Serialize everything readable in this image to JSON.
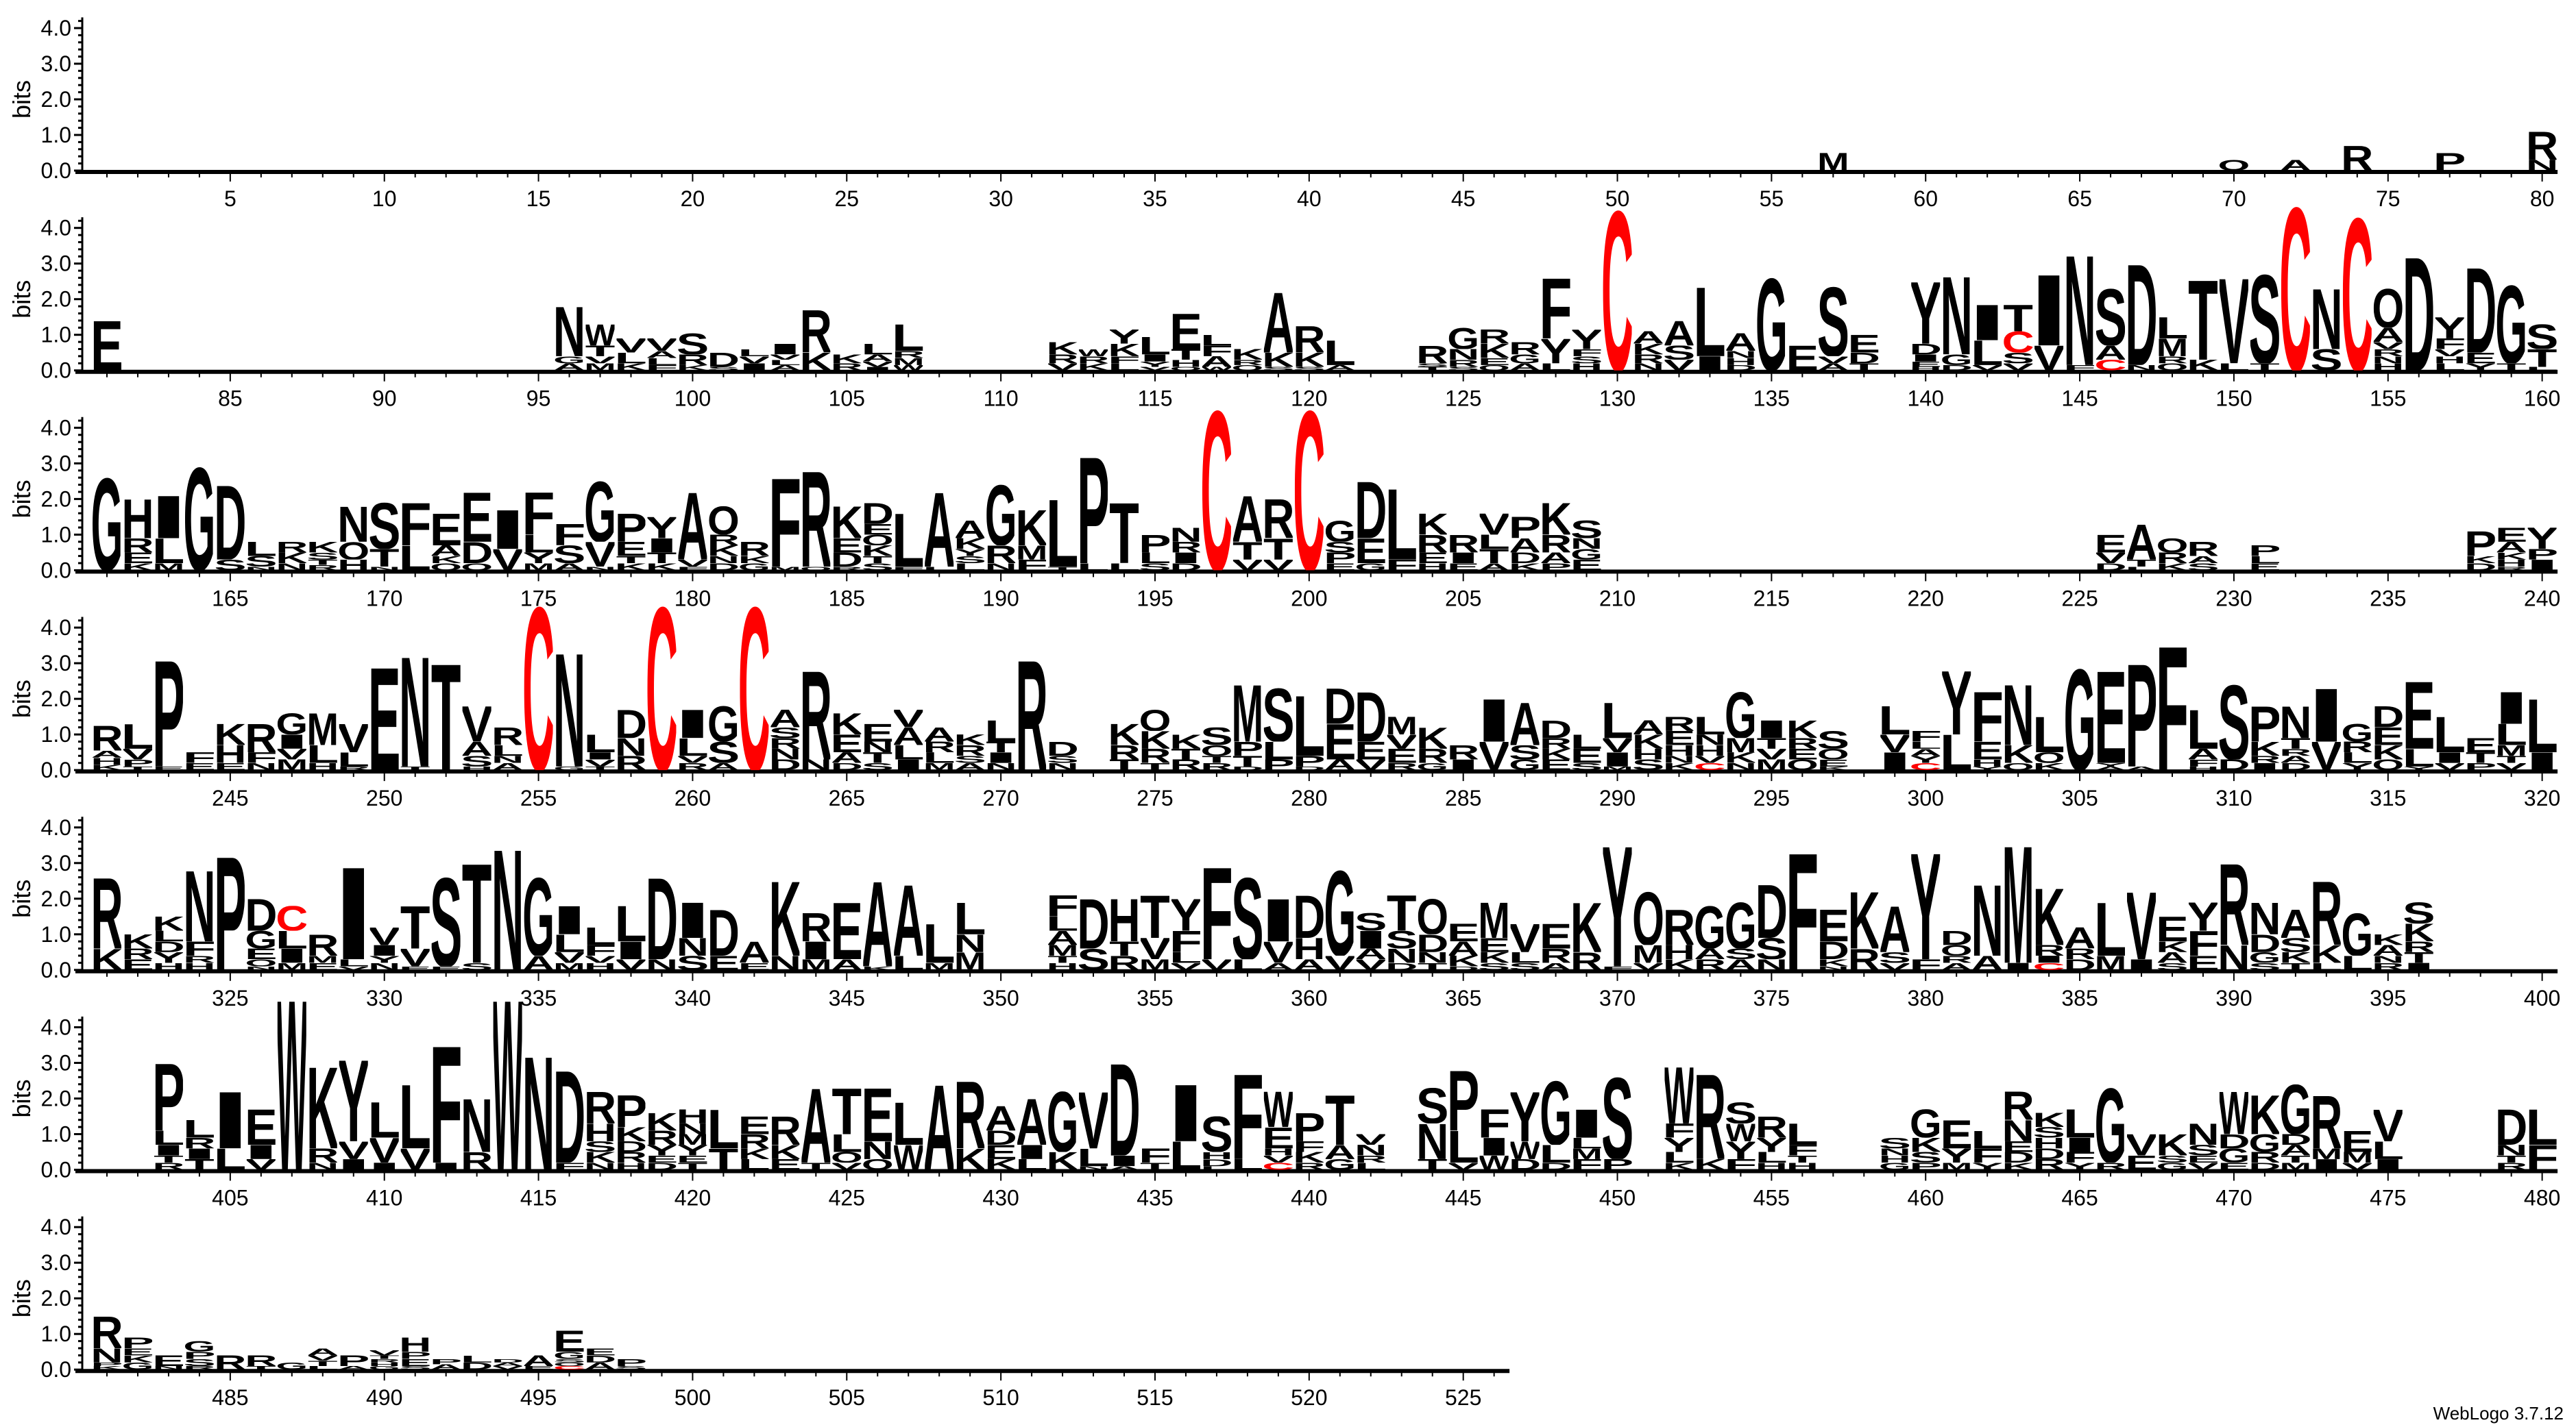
{
  "footer": "WebLogo 3.7.12",
  "chart_data": {
    "type": "sequence-logo",
    "ylabel": "bits",
    "ylim": [
      0,
      4.3
    ],
    "y_tick_labels": [
      "0.0",
      "1.0",
      "2.0",
      "3.0",
      "4.0"
    ],
    "x_tick_step": 5,
    "colors": {
      "default": "#000000",
      "C": "#ff0000",
      "errorbar": "#c0c0c0"
    },
    "rows": [
      {
        "start": 1,
        "end": 80
      },
      {
        "start": 81,
        "end": 160
      },
      {
        "start": 161,
        "end": 240
      },
      {
        "start": 241,
        "end": 320
      },
      {
        "start": 321,
        "end": 400
      },
      {
        "start": 401,
        "end": 480
      },
      {
        "start": 481,
        "end": 526
      }
    ],
    "stacks": {
      "57": "M0.5",
      "70": "Q0.3",
      "72": "A0.3",
      "74": "R0.7",
      "77": "P0.5",
      "80": "R0.8 N0.3",
      "81": "E1.4",
      "96": "N1.4 A0.2 G0.2",
      "97": "W0.6 T0.3 M0.2 V0.2",
      "98": "V0.4 L0.3 K0.2",
      "99": "V0.35 L0.2 A0.2 F0.15",
      "100": "S0.6 R0.3 K0.15",
      "101": "D0.4 S0.1",
      "102": "I0.2 V0.2 L0.2",
      "103": "I0.3 A0.15 L0.15 V0.15",
      "104": "R1.2 K0.5",
      "105": "K0.25 R0.2",
      "106": "L0.3 A0.2 V0.15 I0.1",
      "107": "L0.75 M0.2 R0.2 W0.15",
      "112": "K0.35 R0.25 V0.2",
      "113": "K0.2 R0.2 W0.2",
      "114": "Y0.4 K0.35 L0.2 F0.2",
      "115": "L0.5 I0.2 Y0.15 V0.1",
      "116": "E1.0 T0.3 H0.2 Q0.1",
      "117": "A0.3 F0.3 L0.3 W0.1",
      "118": "K0.3 Q0.15 R0.15",
      "119": "A1.7 K0.4 S0.1",
      "120": "R0.75 K0.4 S0.1",
      "121": "L0.7 A0.15",
      "124": "R0.5 T0.1 S0.1",
      "125": "G0.6 N0.3 R0.2 S0.1",
      "126": "K0.4 R0.4 E0.2 Q0.15",
      "127": "R0.35 G0.25 A0.2",
      "128": "F1.7 Y0.7 L0.2",
      "129": "Y0.55 H0.2 S0.2 F0.2",
      "130": "C4.5",
      "131": "A0.35 K0.3 R0.25 N0.2",
      "132": "A0.7 S0.4 V0.3",
      "133": "L1.95 I0.4",
      "134": "A0.5 H0.2 N0.2 D0.15",
      "135": "G2.6",
      "136": "E0.7",
      "137": "S1.95 A0.2 V0.2",
      "138": "E0.5 D0.3 T0.2",
      "140": "Y1.75 D0.3 I0.2 E0.15 H0.1",
      "141": "N2.2 G0.3 D0.15",
      "142": "I1.0 L0.7 V0.15",
      "143": "T0.75 C0.6 S0.3 V0.2",
      "144": "I2.0 V0.7",
      "145": "N3.1 F0.15",
      "146": "S1.6 A0.4 C0.3",
      "147": "D2.85 N0.15",
      "148": "L0.6 M0.5 Q0.2 R0.2",
      "149": "T2.25 K0.3",
      "150": "V2.4 L0.2",
      "151": "S2.5 T0.2",
      "152": "C4.6",
      "153": "N1.7 S0.6",
      "154": "C4.3",
      "155": "Q1.1 A0.4 H0.2 N0.2 R0.2 V0.2",
      "156": "D3.2",
      "157": "Y0.6 F0.3 L0.2 H0.2 V0.2",
      "158": "D2.4 E0.3 Y0.2",
      "159": "G2.2 T0.2",
      "160": "S0.7 T0.5 L0.1",
      "161": "G2.6",
      "162": "H1.1 R0.4 E0.3 K0.2",
      "163": "I1.2 L0.7 M0.2",
      "164": "G2.9",
      "165": "D2.1 S0.3",
      "166": "L0.4 S0.3 N0.1",
      "167": "K0.3 R0.3 N0.2",
      "168": "K0.3 S0.2 R0.15 T0.15",
      "169": "N1.0 Q0.5 H0.3",
      "170": "S1.3 T0.5 N0.1",
      "171": "F1.2 L0.7",
      "172": "E0.9 A0.3 Q0.2 K0.2",
      "173": "E1.4 D0.6 Q0.2",
      "174": "I1.1 V0.6",
      "175": "F1.2 L0.5 Y0.3 M0.2",
      "176": "F0.6 S0.5 A0.2",
      "177": "G1.7 V0.7 N0.1",
      "178": "P0.8 E0.4 K0.2 T0.2",
      "179": "Y0.6 I0.4 T0.3 K0.2",
      "180": "A1.9 V0.2 F0.1",
      "181": "Q0.8 K0.3 R0.3 D0.2 N0.2",
      "182": "R0.4 G0.2 K0.2",
      "183": "F2.5 M0.1",
      "184": "R2.7 Q0.1",
      "185": "K0.9 D0.4 E0.4 R0.1",
      "186": "D0.6 K0.3 Q0.3 E0.3 S0.2 T0.2",
      "187": "L1.5 F0.1",
      "188": "A2.1 L0.1",
      "189": "A0.5 K0.3 L0.2 S0.2 Y0.2",
      "190": "G1.7 R0.5 N0.2",
      "191": "K1.0 M0.4 F0.3",
      "192": "L1.9 T0.1",
      "193": "P3.0 L0.2",
      "194": "T1.7 L0.2",
      "195": "P0.5 L0.3 S0.2",
      "196": "N0.4 I0.3 R0.3 D0.2",
      "197": "C4.5",
      "198": "A1.3 T0.5 V0.3",
      "199": "R1.1 T0.6 V0.3",
      "200": "C4.5",
      "201": "G0.6 P0.3 S0.3 E0.2",
      "202": "D1.6 E0.7 G0.2",
      "203": "L2.0 F0.3",
      "204": "K0.6 R0.5 E0.3 H0.2",
      "205": "R0.5 I0.3 E0.2",
      "206": "V0.6 T0.4 L0.4 A0.2",
      "207": "P0.6 A0.4 D0.3 K0.2",
      "208": "K0.9 R0.5 A0.3 P0.2",
      "209": "S0.5 E0.3 G0.3 N0.3",
      "226": "E0.5 V0.3 D0.2",
      "227": "A1.0 T0.2 L0.1",
      "228": "Q0.4 R0.3 K0.2",
      "229": "R0.4 S0.2 A0.2",
      "231": "P0.3 E0.2 L0.2",
      "238": "P0.7 D0.2 K0.2",
      "239": "E0.4 A0.3 H0.2 K0.2 R0.1",
      "240": "Y0.6 I0.3 P0.3",
      "241": "R0.7 H0.2 A0.2 K0.15",
      "242": "L0.7 V0.3 P0.2 T0.1",
      "243": "P3.0 E0.1",
      "244": "F0.3 E0.2",
      "245": "K0.6 H0.5 E0.2",
      "246": "R0.8 F0.3 N0.2",
      "247": "G0.6 I0.4 M0.3 V0.3",
      "248": "M0.9 L0.5 H0.2",
      "249": "V0.8 L0.4 R0.1",
      "250": "E2.9",
      "251": "N3.1 T0.1",
      "252": "T3.0",
      "253": "V1.0 A0.4 S0.3 H0.1",
      "254": "R0.5 L0.3 A0.2 N0.2",
      "255": "C4.6",
      "256": "N3.2 G0.1",
      "257": "L0.5 V0.2 I0.2 T0.1",
      "258": "D0.8 N0.5 R0.4",
      "259": "C4.6",
      "260": "I0.8 L0.5 R0.2 V0.2",
      "261": "G1.0 S0.6 A0.2",
      "262": "C4.6",
      "263": "A0.5 D0.3 N0.3 R0.3 S0.3",
      "264": "R2.5 N0.3",
      "265": "K0.6 E0.5 A0.3 D0.2",
      "266": "E0.5 T0.3 N0.3 S0.2",
      "267": "A0.5 V0.5 L0.4 I0.3",
      "268": "A0.4 L0.3 R0.3 M0.2",
      "269": "R0.3 K0.3 A0.2 S0.2",
      "270": "L0.6 I0.3 T0.3 N0.2",
      "271": "R3.1",
      "272": "D0.4 N0.2 S0.2",
      "274": "K0.6 R0.4 T0.3",
      "275": "Q0.6 K0.5 R0.4 T0.2",
      "276": "K0.4 R0.3 T0.3",
      "277": "S0.5 Q0.3 R0.2 T0.2",
      "278": "M1.6 P0.4 T0.3 D0.1",
      "279": "S1.5 L0.5 P0.3",
      "280": "L1.7 P0.3 D0.1",
      "281": "E1.0 D1.0 A0.3",
      "282": "D1.4 E0.5 V0.3",
      "283": "M0.5 E0.4 V0.4 R0.2",
      "284": "K0.6 R0.4 G0.2",
      "285": "R0.4 I0.3",
      "286": "I1.2 V0.8",
      "287": "A1.2 S0.4 G0.3",
      "288": "D0.5 E0.3 K0.3 R0.3",
      "289": "E0.4 L0.4 S0.2",
      "290": "L1.0 I0.4 V0.4 M0.1",
      "291": "K0.4 A0.4 S0.3 H0.3",
      "292": "E0.4 R0.4 H0.3 K0.2 N0.2",
      "293": "L0.5 H0.3 N0.3 C0.2 V0.2",
      "294": "G1.3 M0.4 K0.3 N0.2",
      "295": "I0.5 M0.3 V0.3 T0.3",
      "296": "K0.5 Q0.3 E0.3 R0.3",
      "297": "S0.5 Q0.3 E0.2 K0.1",
      "299": "L0.8 I0.5 V0.5",
      "300": "F0.3 C0.2 Y0.2 A0.2 L0.2",
      "301": "Y1.8 L1.0",
      "302": "F1.4 E0.5 H0.2 Y0.1",
      "303": "N1.7 K0.5 Q0.2",
      "304": "L1.0 Q0.3 K0.2",
      "305": "G2.85",
      "306": "E2.6 A0.1 Y0.1",
      "307": "P2.9 A0.1",
      "308": "F3.5",
      "309": "L1.1 A0.3 F0.2 H0.1",
      "310": "S2.1 D0.3",
      "311": "P1.0 K0.4 I0.2 R0.2",
      "312": "N0.9 T0.3 D0.2 A0.2 R0.2",
      "313": "I1.5 V0.8",
      "314": "G0.5 L0.3 R0.3 Y0.2",
      "315": "D0.6 E0.5 K0.4 Q0.3",
      "316": "E1.9 L0.5 Y0.1",
      "317": "L1.0 I0.3 V0.2",
      "318": "E0.4 T0.3 P0.2",
      "319": "I0.9 L0.6 M0.3 V0.2 T0.2",
      "320": "L1.5 I0.5",
      "321": "R2.0 K0.6",
      "322": "K0.4 E0.3 R0.3",
      "323": "K0.4 Y0.3 D0.3 L0.3 H0.2",
      "324": "N2.0 F0.4 H0.2 R0.2",
      "325": "P3.2",
      "326": "D0.9 G0.5 E0.3 Q0.2 N0.1",
      "327": "C0.7 L0.5 I0.4 M0.2",
      "328": "R0.6 E0.2 M0.2",
      "329": "I2.6 L0.2 V0.1",
      "330": "V0.5 I0.3 N0.2 Y0.2",
      "331": "T1.2 V0.5 E0.1",
      "332": "S2.5 E0.1",
      "333": "T2.8 S0.2",
      "334": "N3.4",
      "335": "G2.2 A0.4",
      "336": "I0.8 L0.5 V0.3 M0.2",
      "337": "L0.5 F0.3 H0.2 V0.2",
      "338": "L1.0 I0.5 V0.3",
      "339": "D2.3 N0.3",
      "340": "I1.0 N0.5 S0.4",
      "341": "D1.3 E0.4",
      "342": "A0.6 E0.2",
      "343": "K2.1 N0.4",
      "344": "R0.8 I0.5 M0.3",
      "345": "E1.6 A0.3",
      "346": "A2.4 K0.1",
      "347": "A2.0 L0.4",
      "348": "L1.1 M0.2",
      "349": "L0.9 M0.5 N0.5",
      "352": "F0.6 A0.4 L0.4 M0.3 H0.2 T0.2",
      "353": "D1.4 S0.6",
      "354": "H1.2 R0.4 T0.4",
      "355": "T1.2 V0.6 M0.3",
      "356": "Y0.9 F0.6 L0.3 V0.2",
      "357": "F2.6 V0.3",
      "358": "S2.3 L0.3",
      "359": "I1.2 V0.6 A0.2",
      "360": "D1.2 H0.6 A0.3",
      "361": "G2.4 V0.4",
      "362": "I0.5 S0.5 V0.3 A0.3",
      "363": "T1.0 S0.5 N0.4 D0.2",
      "364": "Q1.0 D0.5 N0.3 T0.2",
      "365": "E0.5 A0.4 K0.3 D0.1",
      "366": "M1.0 E0.4 K0.3 S0.2",
      "367": "V0.8 L0.3 S0.2",
      "368": "E0.7 R0.4 A0.2",
      "369": "K1.4 R0.5",
      "370": "Y3.4 F0.1",
      "371": "Q1.5 M0.5 V0.2",
      "372": "R1.0 H0.4 K0.3",
      "373": "G1.2 R0.3 A0.3",
      "374": "G1.3 A0.3 S0.3",
      "375": "D1.5 S0.6 N0.3",
      "376": "F3.3",
      "377": "E0.9 D0.5 K0.2 N0.1",
      "378": "K1.6 R0.6",
      "379": "A1.3 S0.3 V0.2",
      "380": "Y3.0 F0.3",
      "381": "D0.4 Q0.3 A0.2 R0.2",
      "382": "N2.0 A0.4",
      "383": "M3.3 I0.2",
      "384": "K1.6 R0.3 C0.2 I0.2",
      "385": "A0.6 D0.3 R0.3",
      "386": "L1.5 M0.4",
      "387": "V1.9 I0.3",
      "388": "E0.7 A0.3 K0.3 S0.2",
      "389": "Y0.8 F0.7 E0.4",
      "390": "R2.3 N0.7",
      "391": "N0.9 D0.5 G0.3 S0.2",
      "392": "A0.8 S0.4 K0.3 T0.2",
      "393": "R1.8 K0.5 L0.2",
      "394": "G1.2 L0.4",
      "395": "A0.3 K0.3 R0.2 N0.2",
      "396": "S0.6 K0.5 T0.3 R0.3 I0.2",
      "403": "P1.9 L0.4 I0.3 R0.2 T0.2",
      "404": "L0.5 T0.3 I0.3 R0.3",
      "405": "I1.6 L0.6",
      "406": "E1.0 I0.4 V0.3",
      "407": "W4.8",
      "408": "K2.3 R0.4 N0.2",
      "409": "Y2.3 V0.5 I0.3",
      "410": "L1.0 V0.7 I0.2",
      "411": "L1.8 V0.6",
      "412": "F3.3 I0.2",
      "413": "N1.5 R0.5",
      "414": "W4.8",
      "415": "N3.2",
      "416": "D2.6 F0.2",
      "417": "R0.9 H0.5 K0.3 S0.3 N0.2",
      "418": "P0.9 K0.4 R0.3 D0.3 H0.2",
      "419": "K0.5 R0.4 Y0.3 D0.2 E0.2",
      "420": "H0.4 Y0.3 M0.3 N0.3 T0.2 E0.2",
      "421": "L1.1 T0.6",
      "422": "E0.5 R0.4 L0.3 K0.3",
      "423": "R0.8 K0.4 E0.3",
      "424": "A2.1 T0.2",
      "425": "T1.3 L0.5 Q0.3 V0.2",
      "426": "E1.5 N0.5 Q0.3",
      "427": "L1.2 W0.7",
      "428": "A2.4",
      "429": "R1.9 K0.6",
      "430": "A0.7 E0.4 D0.4 K0.3",
      "431": "A1.3 I0.4 L0.3",
      "432": "G1.7 K0.5",
      "433": "V1.6 L0.5 N0.1",
      "434": "D2.6 I0.3 A0.1",
      "435": "F0.4 T0.2",
      "436": "I1.6 L0.8",
      "437": "S1.0 D0.2 H0.2 L0.1",
      "438": "F2.4 L0.3",
      "439": "W1.0 E0.6 C0.2 V0.2 H0.2",
      "440": "P0.8 K0.3 F0.3 R0.2",
      "441": "T1.4 A0.4 G0.3",
      "442": "N0.3 V0.3 L0.2 R0.2",
      "444": "N1.0 S1.0 T0.3",
      "445": "P1.7 L0.9 V0.2",
      "446": "F0.8 I0.5 W0.4",
      "447": "Y1.4 W0.5 D0.3",
      "448": "G1.8 L0.5 D0.2",
      "449": "I0.8 F0.3 M0.3 L0.3",
      "450": "S2.3 P0.3",
      "452": "W1.6 Y0.4 F0.4 L0.3 K0.2",
      "453": "R2.4 K0.3",
      "454": "S0.6 Y0.5 W0.5 F0.3",
      "455": "R0.6 Y0.4 L0.3 H0.2",
      "456": "L0.6 F0.3 H0.2 T0.2",
      "459": "S0.3 G0.2 H0.2 N0.2",
      "460": "G0.8 K0.4 S0.3 P0.2",
      "461": "E0.8 Y0.4 M0.2",
      "462": "L0.5 F0.4 Y0.2",
      "463": "R0.8 N0.6 D0.3 E0.3 K0.2",
      "464": "K0.4 R0.3 D0.3 H0.3 S0.3",
      "465": "L0.8 I0.4 F0.3 Y0.2",
      "466": "G2.1 R0.2",
      "467": "V0.6 E0.4",
      "468": "K0.6 G0.2 S0.2",
      "469": "N0.6 S0.3 V0.2 E0.2",
      "470": "W1.2 G0.4 D0.4 E0.2",
      "471": "K1.1 G0.5 R0.3 D0.2",
      "472": "G1.4 A0.3 D0.3 M0.2 T0.2",
      "473": "R1.5 I0.3 M0.3",
      "474": "E0.6 M0.3 V0.2",
      "475": "V0.9 L0.5 I0.3",
      "479": "D1.0 N0.3 R0.2 T0.2",
      "480": "L1.0 F0.7",
      "481": "R0.9 N0.4 K0.1 P0.1",
      "482": "P0.3 G0.2 K0.2 E0.2",
      "483": "E0.3 N0.1",
      "484": "G0.3 S0.2 P0.2 R0.1",
      "485": "R0.4",
      "486": "R0.3 T0.1",
      "487": "G0.2",
      "488": "A0.2 T0.15 V0.15 L0.1",
      "489": "P0.3 A0.1",
      "490": "V0.15 G0.1 H0.1 R0.1 T0.1",
      "491": "H0.4 E0.2 P0.2 S0.1",
      "492": "A0.15 P0.15",
      "493": "D0.2 L0.2",
      "494": "V0.1 A0.1 D0.1",
      "495": "A0.3 E0.1",
      "496": "E0.6 G0.2 C0.1 Q0.1 S0.1",
      "497": "A0.2 D0.2 E0.2",
      "498": "P0.2 S0.1"
    }
  }
}
